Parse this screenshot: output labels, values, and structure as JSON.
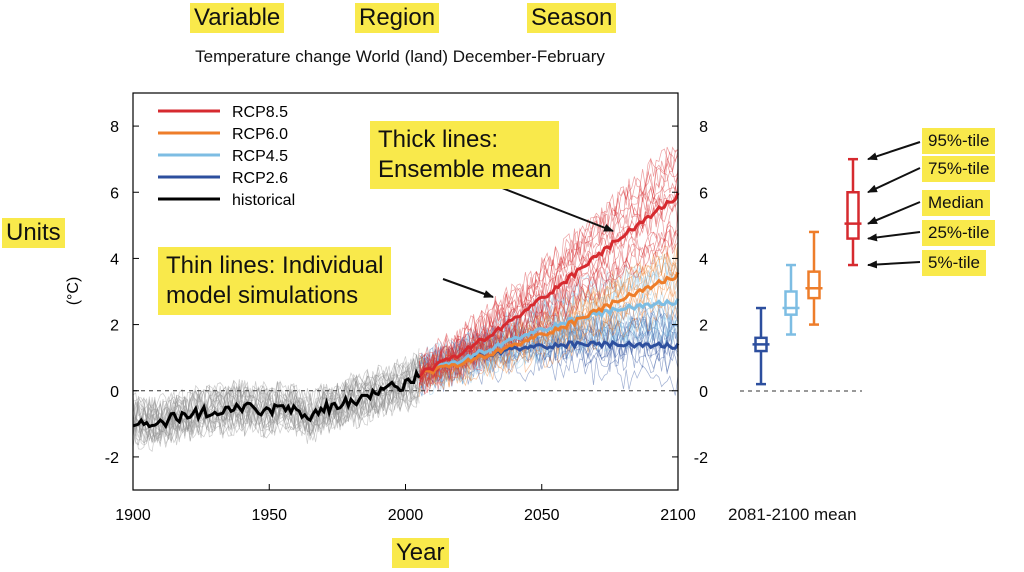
{
  "header": {
    "variable_tag": "Variable",
    "region_tag": "Region",
    "season_tag": "Season",
    "subtitle": "Temperature change World (land) December-February"
  },
  "units_tag": "Units",
  "year_tag": "Year",
  "annotations": {
    "thick_lines": [
      "Thick lines:",
      "Ensemble mean"
    ],
    "thin_lines": [
      "Thin lines: Individual",
      "model simulations"
    ],
    "percentiles": [
      "95%-tile",
      "75%-tile",
      "Median",
      "25%-tile",
      "5%-tile"
    ]
  },
  "boxplot_label": "2081-2100 mean",
  "colors": {
    "rcp85": "#d62a2f",
    "rcp60": "#ee7d2a",
    "rcp45": "#7dbde3",
    "rcp26": "#2d4f9e",
    "historical": "#000000",
    "individual_gray": "#8c8c8c",
    "highlight": "#f9e94b"
  },
  "chart_data": {
    "type": "line",
    "ylabel": "(°C)",
    "xlim": [
      1900,
      2100
    ],
    "ylim": [
      -3,
      9
    ],
    "x_ticks": [
      1900,
      1950,
      2000,
      2050,
      2100
    ],
    "y_ticks": [
      8,
      6,
      4,
      2,
      0,
      -2
    ],
    "legend_position": "top-left",
    "series": [
      {
        "name": "RCP8.5",
        "x": [
          2005,
          2020,
          2040,
          2060,
          2080,
          2100
        ],
        "y": [
          0.5,
          1.1,
          2.2,
          3.4,
          4.7,
          5.9
        ]
      },
      {
        "name": "RCP6.0",
        "x": [
          2005,
          2020,
          2040,
          2060,
          2080,
          2100
        ],
        "y": [
          0.5,
          0.8,
          1.4,
          2.0,
          2.8,
          3.5
        ]
      },
      {
        "name": "RCP4.5",
        "x": [
          2005,
          2020,
          2040,
          2060,
          2080,
          2100
        ],
        "y": [
          0.5,
          0.9,
          1.6,
          2.1,
          2.5,
          2.7
        ]
      },
      {
        "name": "RCP2.6",
        "x": [
          2005,
          2020,
          2040,
          2060,
          2080,
          2100
        ],
        "y": [
          0.5,
          0.9,
          1.3,
          1.4,
          1.4,
          1.35
        ]
      },
      {
        "name": "historical",
        "x": [
          1900,
          1905,
          1910,
          1915,
          1920,
          1925,
          1930,
          1935,
          1940,
          1945,
          1950,
          1955,
          1960,
          1965,
          1970,
          1975,
          1980,
          1985,
          1990,
          1995,
          2000,
          2005
        ],
        "y": [
          -0.9,
          -0.95,
          -1.0,
          -0.8,
          -0.75,
          -0.65,
          -0.6,
          -0.55,
          -0.5,
          -0.55,
          -0.6,
          -0.5,
          -0.6,
          -0.8,
          -0.5,
          -0.5,
          -0.3,
          -0.25,
          -0.05,
          0.1,
          0.2,
          0.45
        ]
      }
    ],
    "boxplots": [
      {
        "name": "RCP2.6",
        "p5": 0.2,
        "p25": 1.2,
        "median": 1.4,
        "p75": 1.6,
        "p95": 2.5
      },
      {
        "name": "RCP4.5",
        "p5": 1.7,
        "p25": 2.3,
        "median": 2.5,
        "p75": 3.0,
        "p95": 3.8
      },
      {
        "name": "RCP6.0",
        "p5": 2.0,
        "p25": 2.8,
        "median": 3.1,
        "p75": 3.6,
        "p95": 4.8
      },
      {
        "name": "RCP8.5",
        "p5": 3.8,
        "p25": 4.6,
        "median": 5.05,
        "p75": 6.0,
        "p95": 7.0
      }
    ]
  }
}
